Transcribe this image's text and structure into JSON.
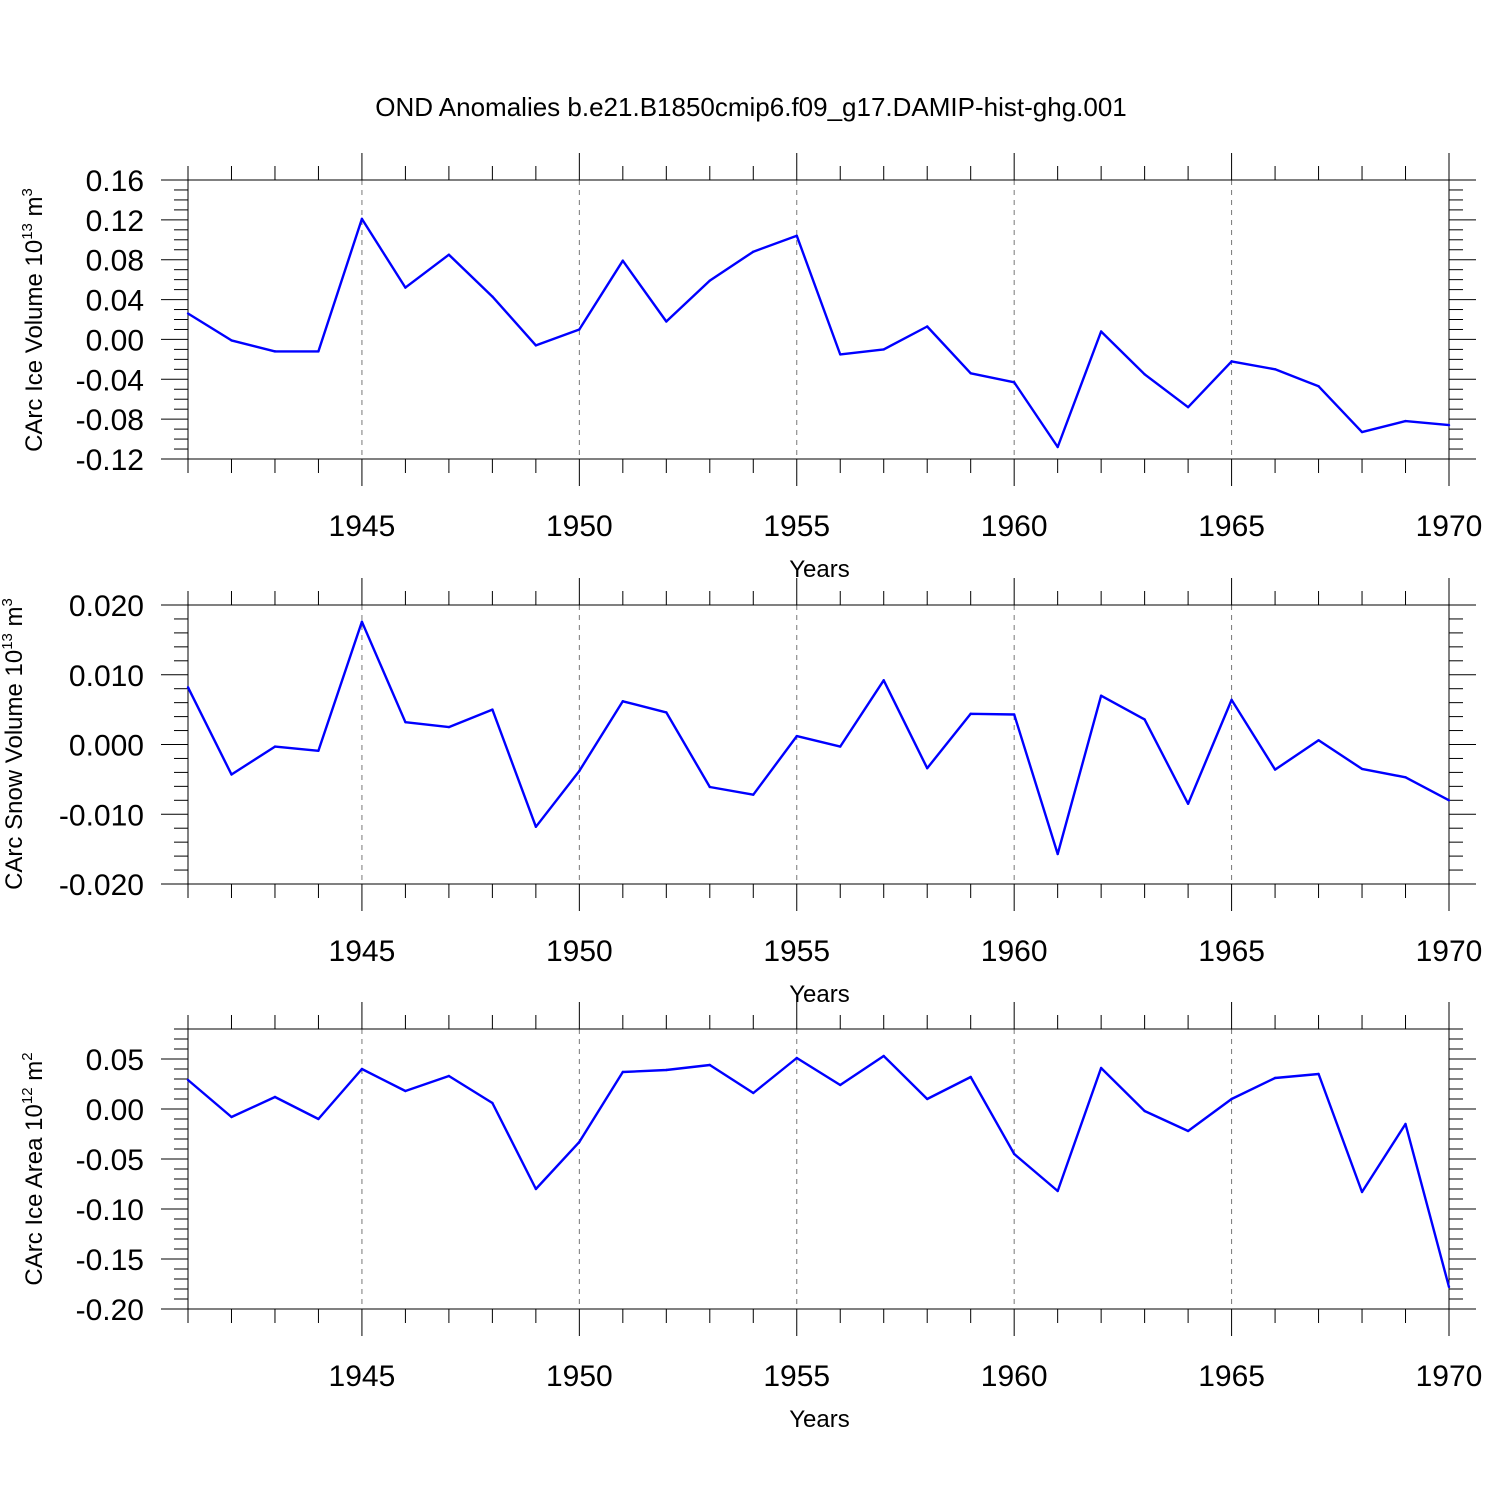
{
  "title": "OND Anomalies b.e21.B1850cmip6.f09_g17.DAMIP-hist-ghg.001",
  "colors": {
    "series": "#0000ff",
    "grid": "#777777",
    "axis": "#000000"
  },
  "chart_data": [
    {
      "type": "line",
      "xlabel": "Years",
      "ylabel_parts": [
        "CArc Ice Volume 10",
        "13",
        " m",
        "3"
      ],
      "xlim": [
        1941,
        1970
      ],
      "ylim": [
        -0.12,
        0.16
      ],
      "yticks": [
        {
          "v": 0.16,
          "label": "0.16"
        },
        {
          "v": 0.12,
          "label": "0.12"
        },
        {
          "v": 0.08,
          "label": "0.08"
        },
        {
          "v": 0.04,
          "label": "0.04"
        },
        {
          "v": 0.0,
          "label": "0.00"
        },
        {
          "v": -0.04,
          "label": "-0.04"
        },
        {
          "v": -0.08,
          "label": "-0.08"
        },
        {
          "v": -0.12,
          "label": "-0.12"
        }
      ],
      "yminor_step": 0.01,
      "xticks": [
        {
          "v": 1945,
          "label": "1945"
        },
        {
          "v": 1950,
          "label": "1950"
        },
        {
          "v": 1955,
          "label": "1955"
        },
        {
          "v": 1960,
          "label": "1960"
        },
        {
          "v": 1965,
          "label": "1965"
        },
        {
          "v": 1970,
          "label": "1970"
        }
      ],
      "x": [
        1941,
        1942,
        1943,
        1944,
        1945,
        1946,
        1947,
        1948,
        1949,
        1950,
        1951,
        1952,
        1953,
        1954,
        1955,
        1956,
        1957,
        1958,
        1959,
        1960,
        1961,
        1962,
        1963,
        1964,
        1965,
        1966,
        1967,
        1968,
        1969,
        1970
      ],
      "y": [
        0.026,
        -0.001,
        -0.012,
        -0.012,
        0.121,
        0.052,
        0.085,
        0.043,
        -0.006,
        0.01,
        0.079,
        0.018,
        0.059,
        0.088,
        0.104,
        -0.015,
        -0.01,
        0.013,
        -0.034,
        -0.043,
        -0.108,
        0.008,
        -0.035,
        -0.068,
        -0.022,
        -0.03,
        -0.047,
        -0.093,
        -0.082,
        -0.086
      ]
    },
    {
      "type": "line",
      "xlabel": "Years",
      "ylabel_parts": [
        "CArc Snow Volume 10",
        "13",
        " m",
        "3"
      ],
      "xlim": [
        1941,
        1970
      ],
      "ylim": [
        -0.02,
        0.02
      ],
      "yticks": [
        {
          "v": 0.02,
          "label": "0.020"
        },
        {
          "v": 0.01,
          "label": "0.010"
        },
        {
          "v": 0.0,
          "label": "0.000"
        },
        {
          "v": -0.01,
          "label": "-0.010"
        },
        {
          "v": -0.02,
          "label": "-0.020"
        }
      ],
      "yminor_step": 0.002,
      "xticks": [
        {
          "v": 1945,
          "label": "1945"
        },
        {
          "v": 1950,
          "label": "1950"
        },
        {
          "v": 1955,
          "label": "1955"
        },
        {
          "v": 1960,
          "label": "1960"
        },
        {
          "v": 1965,
          "label": "1965"
        },
        {
          "v": 1970,
          "label": "1970"
        }
      ],
      "x": [
        1941,
        1942,
        1943,
        1944,
        1945,
        1946,
        1947,
        1948,
        1949,
        1950,
        1951,
        1952,
        1953,
        1954,
        1955,
        1956,
        1957,
        1958,
        1959,
        1960,
        1961,
        1962,
        1963,
        1964,
        1965,
        1966,
        1967,
        1968,
        1969,
        1970
      ],
      "y": [
        0.0082,
        -0.0043,
        -0.0003,
        -0.0009,
        0.0176,
        0.0032,
        0.0025,
        0.005,
        -0.0118,
        -0.0038,
        0.0062,
        0.0046,
        -0.0061,
        -0.0072,
        0.0012,
        -0.0003,
        0.0092,
        -0.0034,
        0.0044,
        0.0043,
        -0.0157,
        0.007,
        0.0036,
        -0.0085,
        0.0064,
        -0.0036,
        0.0006,
        -0.0035,
        -0.0047,
        -0.008
      ]
    },
    {
      "type": "line",
      "xlabel": "Years",
      "ylabel_parts": [
        "CArc Ice Area 10",
        "12",
        " m",
        "2"
      ],
      "xlim": [
        1941,
        1970
      ],
      "ylim": [
        -0.2,
        0.08
      ],
      "yticks": [
        {
          "v": 0.05,
          "label": "0.05"
        },
        {
          "v": 0.0,
          "label": "0.00"
        },
        {
          "v": -0.05,
          "label": "-0.05"
        },
        {
          "v": -0.1,
          "label": "-0.10"
        },
        {
          "v": -0.15,
          "label": "-0.15"
        },
        {
          "v": -0.2,
          "label": "-0.20"
        }
      ],
      "yminor_step": 0.01,
      "xticks": [
        {
          "v": 1945,
          "label": "1945"
        },
        {
          "v": 1950,
          "label": "1950"
        },
        {
          "v": 1955,
          "label": "1955"
        },
        {
          "v": 1960,
          "label": "1960"
        },
        {
          "v": 1965,
          "label": "1965"
        },
        {
          "v": 1970,
          "label": "1970"
        }
      ],
      "x": [
        1941,
        1942,
        1943,
        1944,
        1945,
        1946,
        1947,
        1948,
        1949,
        1950,
        1951,
        1952,
        1953,
        1954,
        1955,
        1956,
        1957,
        1958,
        1959,
        1960,
        1961,
        1962,
        1963,
        1964,
        1965,
        1966,
        1967,
        1968,
        1969,
        1970
      ],
      "y": [
        0.029,
        -0.008,
        0.012,
        -0.01,
        0.04,
        0.018,
        0.033,
        0.006,
        -0.08,
        -0.033,
        0.037,
        0.039,
        0.044,
        0.016,
        0.051,
        0.024,
        0.053,
        0.01,
        0.032,
        -0.045,
        -0.082,
        0.041,
        -0.002,
        -0.022,
        0.01,
        0.031,
        0.035,
        -0.083,
        -0.015,
        -0.178
      ]
    }
  ]
}
